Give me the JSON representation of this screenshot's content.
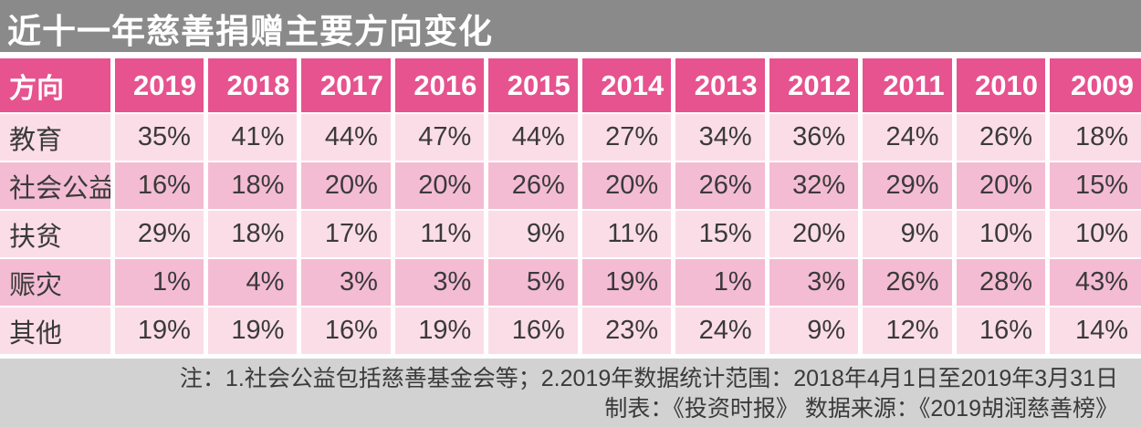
{
  "title": "近十一年慈善捐赠主要方向变化",
  "colors": {
    "title_bar": "#8a8a8a",
    "header_pink": "#e6538f",
    "row_light": "#fbdde8",
    "row_dark": "#f4bcd2",
    "footer_bg": "#d2d2d2",
    "text_dark": "#3a3a3a",
    "header_text": "#ffffff"
  },
  "table": {
    "direction_header": "方向",
    "years": [
      "2019",
      "2018",
      "2017",
      "2016",
      "2015",
      "2014",
      "2013",
      "2012",
      "2011",
      "2010",
      "2009"
    ],
    "rows": [
      {
        "label": "教育",
        "values": [
          "35%",
          "41%",
          "44%",
          "47%",
          "44%",
          "27%",
          "34%",
          "36%",
          "24%",
          "26%",
          "18%"
        ]
      },
      {
        "label": "社会公益",
        "values": [
          "16%",
          "18%",
          "20%",
          "20%",
          "26%",
          "20%",
          "26%",
          "32%",
          "29%",
          "20%",
          "15%"
        ]
      },
      {
        "label": "扶贫",
        "values": [
          "29%",
          "18%",
          "17%",
          "11%",
          "9%",
          "11%",
          "15%",
          "20%",
          "9%",
          "10%",
          "10%"
        ]
      },
      {
        "label": "赈灾",
        "values": [
          "1%",
          "4%",
          "3%",
          "3%",
          "5%",
          "19%",
          "1%",
          "3%",
          "26%",
          "28%",
          "43%"
        ]
      },
      {
        "label": "其他",
        "values": [
          "19%",
          "19%",
          "16%",
          "19%",
          "16%",
          "23%",
          "24%",
          "9%",
          "12%",
          "16%",
          "14%"
        ]
      }
    ]
  },
  "footer": {
    "note_line": "注：1.社会公益包括慈善基金会等；2.2019年数据统计范围：2018年4月1日至2019年3月31日",
    "credit_line": "制表：《投资时报》 数据来源：《2019胡润慈善榜》"
  },
  "chart_data": {
    "type": "table",
    "title": "近十一年慈善捐赠主要方向变化",
    "categories": [
      "2019",
      "2018",
      "2017",
      "2016",
      "2015",
      "2014",
      "2013",
      "2012",
      "2011",
      "2010",
      "2009"
    ],
    "series": [
      {
        "name": "教育",
        "values": [
          35,
          41,
          44,
          47,
          44,
          27,
          34,
          36,
          24,
          26,
          18
        ]
      },
      {
        "name": "社会公益",
        "values": [
          16,
          18,
          20,
          20,
          26,
          20,
          26,
          32,
          29,
          20,
          15
        ]
      },
      {
        "name": "扶贫",
        "values": [
          29,
          18,
          17,
          11,
          9,
          11,
          15,
          20,
          9,
          10,
          10
        ]
      },
      {
        "name": "赈灾",
        "values": [
          1,
          4,
          3,
          3,
          5,
          19,
          1,
          3,
          26,
          28,
          43
        ]
      },
      {
        "name": "其他",
        "values": [
          19,
          19,
          16,
          19,
          16,
          23,
          24,
          9,
          12,
          16,
          14
        ]
      }
    ],
    "unit": "%",
    "row_header_label": "方向",
    "notes": [
      "注：1.社会公益包括慈善基金会等；2.2019年数据统计范围：2018年4月1日至2019年3月31日",
      "制表：《投资时报》 数据来源：《2019胡润慈善榜》"
    ]
  }
}
